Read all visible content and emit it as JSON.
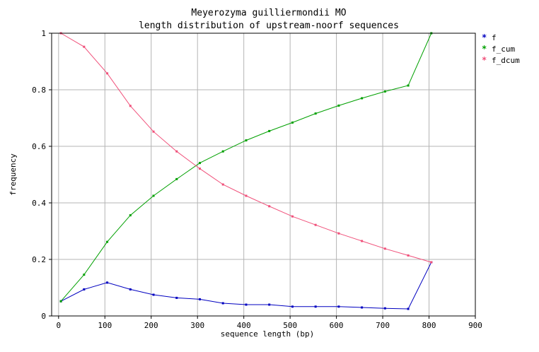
{
  "chart_data": {
    "type": "line",
    "title": [
      "Meyerozyma guilliermondii MO",
      "length distribution of upstream-noorf sequences"
    ],
    "xlabel": "sequence length (bp)",
    "ylabel": "frequency",
    "xlim": [
      -15,
      900
    ],
    "ylim": [
      0,
      1
    ],
    "xticks": [
      0,
      100,
      200,
      300,
      400,
      500,
      600,
      700,
      800,
      900
    ],
    "yticks": [
      0,
      0.2,
      0.4,
      0.6,
      0.8,
      1
    ],
    "ytick_labels": [
      "0",
      "0.2",
      "0.4",
      "0.6",
      "0.8",
      "1"
    ],
    "grid": true,
    "legend": "right",
    "x": [
      5,
      55,
      105,
      155,
      205,
      255,
      305,
      355,
      405,
      455,
      505,
      555,
      605,
      655,
      705,
      755,
      805
    ],
    "series": [
      {
        "name": "f",
        "color": "#0000c0",
        "values": [
          0.052,
          0.094,
          0.118,
          0.094,
          0.075,
          0.064,
          0.059,
          0.045,
          0.04,
          0.04,
          0.033,
          0.033,
          0.033,
          0.03,
          0.027,
          0.025,
          0.19
        ]
      },
      {
        "name": "f_cum",
        "color": "#00a000",
        "values": [
          0.052,
          0.146,
          0.262,
          0.356,
          0.425,
          0.484,
          0.541,
          0.582,
          0.621,
          0.654,
          0.684,
          0.716,
          0.744,
          0.77,
          0.794,
          0.815,
          1.0
        ]
      },
      {
        "name": "f_dcum",
        "color": "#f0507a",
        "values": [
          1.0,
          0.952,
          0.858,
          0.743,
          0.652,
          0.582,
          0.521,
          0.465,
          0.425,
          0.388,
          0.352,
          0.322,
          0.292,
          0.265,
          0.238,
          0.214,
          0.19
        ]
      }
    ]
  }
}
